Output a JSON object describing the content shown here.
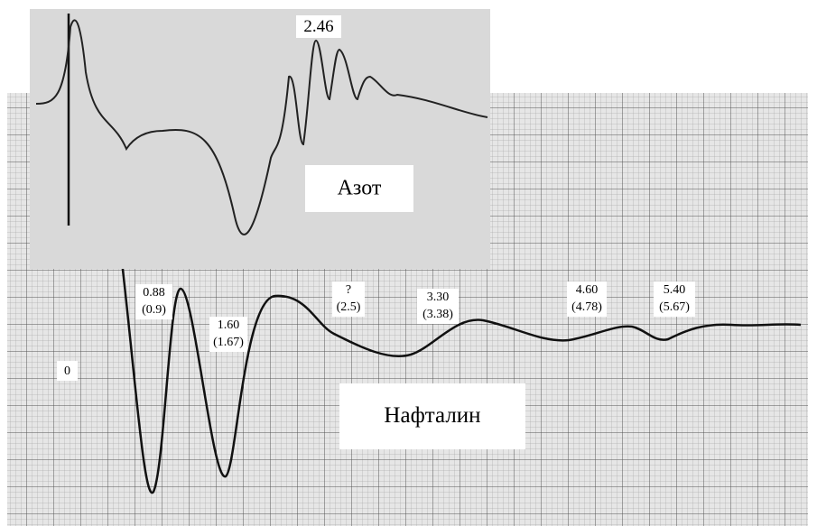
{
  "inset": {
    "label": "Азот",
    "peak_label": "2.46"
  },
  "main": {
    "label": "Нафталин",
    "origin_label": "0",
    "annotations": [
      [
        "0.88",
        "(0.9)"
      ],
      [
        "1.60",
        "(1.67)"
      ],
      [
        "?",
        "(2.5)"
      ],
      [
        "3.30",
        "(3.38)"
      ],
      [
        "4.60",
        "(4.78)"
      ],
      [
        "5.40",
        "(5.67)"
      ]
    ]
  }
}
